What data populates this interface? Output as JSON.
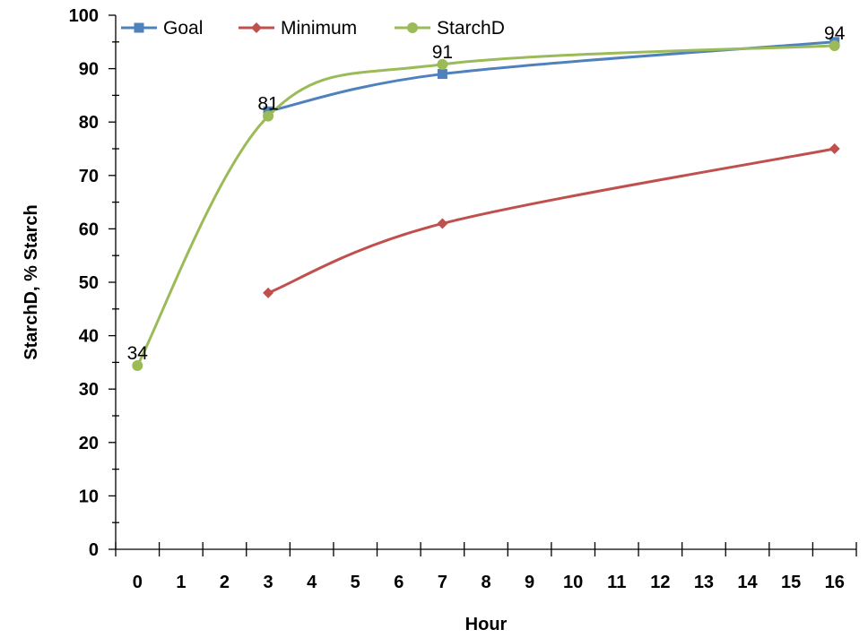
{
  "chart_data": {
    "type": "line",
    "x_categories": [
      "0",
      "1",
      "2",
      "3",
      "4",
      "5",
      "6",
      "7",
      "8",
      "9",
      "10",
      "11",
      "12",
      "13",
      "14",
      "15",
      "16"
    ],
    "xlabel": "Hour",
    "ylabel": "StarchD, % Starch",
    "ylim": [
      0,
      100
    ],
    "yticks": [
      0,
      10,
      20,
      30,
      40,
      50,
      60,
      70,
      80,
      90,
      100
    ],
    "grid": false,
    "legend_position": "top",
    "series": [
      {
        "name": "Goal",
        "color": "#4F81BD",
        "marker": "square",
        "points": [
          [
            3,
            82
          ],
          [
            7,
            89
          ],
          [
            16,
            95
          ]
        ]
      },
      {
        "name": "Minimum",
        "color": "#C0504D",
        "marker": "diamond",
        "points": [
          [
            3,
            48
          ],
          [
            7,
            61
          ],
          [
            16,
            75
          ]
        ]
      },
      {
        "name": "StarchD",
        "color": "#9BBB59",
        "marker": "circle",
        "points": [
          [
            0,
            34.4
          ],
          [
            3,
            81.1
          ],
          [
            7,
            90.8
          ],
          [
            16,
            94.3
          ]
        ],
        "data_labels": [
          "34",
          "81",
          "91",
          "94"
        ]
      }
    ]
  }
}
